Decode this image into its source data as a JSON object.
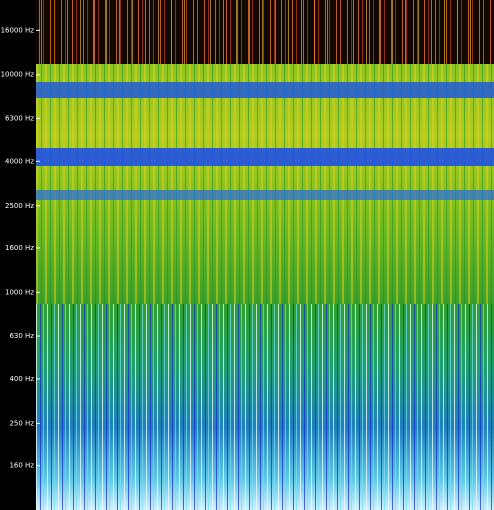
{
  "chart_data": {
    "type": "spectrogram",
    "ylim": [
      100,
      22050
    ],
    "log_scale": true,
    "yticks": [
      {
        "value": 16000,
        "label": "16000 Hz"
      },
      {
        "value": 10000,
        "label": "10000 Hz"
      },
      {
        "value": 6300,
        "label": "6300 Hz"
      },
      {
        "value": 4000,
        "label": "4000 Hz"
      },
      {
        "value": 2500,
        "label": "2500 Hz"
      },
      {
        "value": 1600,
        "label": "1600 Hz"
      },
      {
        "value": 1000,
        "label": "1000 Hz"
      },
      {
        "value": 630,
        "label": "630 Hz"
      },
      {
        "value": 400,
        "label": "400 Hz"
      },
      {
        "value": 250,
        "label": "250 Hz"
      },
      {
        "value": 160,
        "label": "160 Hz"
      }
    ]
  }
}
